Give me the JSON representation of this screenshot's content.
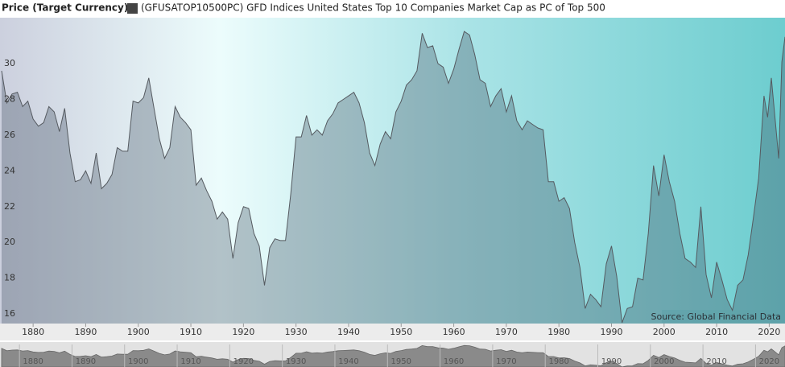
{
  "chart_data": {
    "type": "area",
    "title": "Price (Target Currency)",
    "annotation": "Source: Global Financial Data",
    "x": [
      1874,
      1875,
      1876,
      1877,
      1878,
      1879,
      1880,
      1881,
      1882,
      1883,
      1884,
      1885,
      1886,
      1887,
      1888,
      1889,
      1890,
      1891,
      1892,
      1893,
      1894,
      1895,
      1896,
      1897,
      1898,
      1899,
      1900,
      1901,
      1902,
      1903,
      1904,
      1905,
      1906,
      1907,
      1908,
      1909,
      1910,
      1911,
      1912,
      1913,
      1914,
      1915,
      1916,
      1917,
      1918,
      1919,
      1920,
      1921,
      1922,
      1923,
      1924,
      1925,
      1926,
      1927,
      1928,
      1929,
      1930,
      1931,
      1932,
      1933,
      1934,
      1935,
      1936,
      1937,
      1938,
      1939,
      1940,
      1941,
      1942,
      1943,
      1944,
      1945,
      1946,
      1947,
      1948,
      1949,
      1950,
      1951,
      1952,
      1953,
      1954,
      1955,
      1956,
      1957,
      1958,
      1959,
      1960,
      1961,
      1962,
      1963,
      1964,
      1965,
      1966,
      1967,
      1968,
      1969,
      1970,
      1971,
      1972,
      1973,
      1974,
      1975,
      1976,
      1977,
      1978,
      1979,
      1980,
      1981,
      1982,
      1983,
      1984,
      1985,
      1986,
      1987,
      1988,
      1989,
      1990,
      1991,
      1992,
      1993,
      1994,
      1995,
      1996,
      1997,
      1998,
      1999,
      2000,
      2001,
      2002,
      2003,
      2004,
      2005,
      2006,
      2007,
      2008,
      2009,
      2010,
      2011,
      2012,
      2013,
      2014,
      2015,
      2016,
      2017,
      2018,
      2019,
      2019.7,
      2020.4,
      2021,
      2021.8,
      2022.4,
      2023
    ],
    "series": [
      {
        "name": "(GFUSATOP10500PC) GFD Indices United States Top 10 Companies Market Cap as PC of Top 500",
        "color": "#555a60",
        "values": [
          29.6,
          27.8,
          28.3,
          28.4,
          27.6,
          27.9,
          26.9,
          26.5,
          26.7,
          27.6,
          27.3,
          26.2,
          27.5,
          25.0,
          23.4,
          23.5,
          24.0,
          23.3,
          25.0,
          23.0,
          23.3,
          23.8,
          25.3,
          25.1,
          25.1,
          27.9,
          27.8,
          28.1,
          29.2,
          27.5,
          25.8,
          24.7,
          25.3,
          27.6,
          27.0,
          26.7,
          26.3,
          23.2,
          23.6,
          22.9,
          22.3,
          21.3,
          21.7,
          21.3,
          19.1,
          21.1,
          22.0,
          21.9,
          20.5,
          19.8,
          17.6,
          19.7,
          20.2,
          20.1,
          20.1,
          22.7,
          25.9,
          25.9,
          27.1,
          26.0,
          26.3,
          26.0,
          26.8,
          27.2,
          27.8,
          28.0,
          28.2,
          28.4,
          27.8,
          26.7,
          25.0,
          24.3,
          25.5,
          26.2,
          25.8,
          27.3,
          27.9,
          28.8,
          29.1,
          29.6,
          31.7,
          30.9,
          31.0,
          30.0,
          29.8,
          28.9,
          29.7,
          30.8,
          31.8,
          31.6,
          30.5,
          29.1,
          28.9,
          27.6,
          28.2,
          28.6,
          27.3,
          28.2,
          26.8,
          26.3,
          26.8,
          26.6,
          26.4,
          26.3,
          23.4,
          23.4,
          22.3,
          22.5,
          21.9,
          20.0,
          18.6,
          16.3,
          17.1,
          16.8,
          16.4,
          18.8,
          19.8,
          18.1,
          15.5,
          16.3,
          16.4,
          18.0,
          17.9,
          20.5,
          24.3,
          22.6,
          24.9,
          23.4,
          22.3,
          20.5,
          19.1,
          18.9,
          18.6,
          22.0,
          18.2,
          16.9,
          18.9,
          17.9,
          16.8,
          16.2,
          17.6,
          17.9,
          19.3,
          21.4,
          23.6,
          28.2,
          27.0,
          29.2,
          27.3,
          24.7,
          30.1,
          31.5
        ]
      }
    ],
    "xlim": [
      1873.7,
      2023
    ],
    "xticks": [
      1880,
      1890,
      1900,
      1910,
      1920,
      1930,
      1940,
      1950,
      1960,
      1970,
      1980,
      1990,
      2000,
      2010,
      2020
    ],
    "ylim": [
      15.46,
      32.57
    ],
    "yticks": [
      16,
      18,
      20,
      22,
      24,
      26,
      28,
      30
    ],
    "grid": false
  }
}
